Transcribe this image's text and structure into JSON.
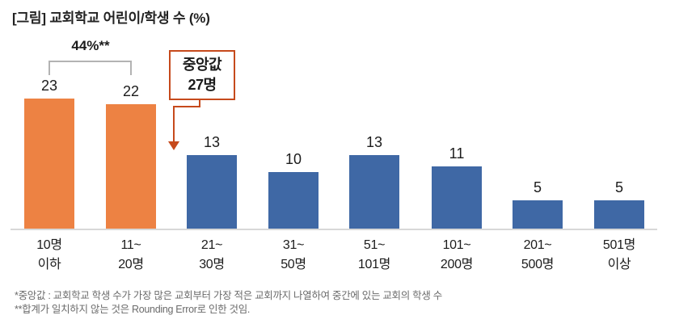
{
  "title": "[그림] 교회학교 어린이/학생 수 (%)",
  "chart_data": {
    "type": "bar",
    "categories": [
      [
        "10명",
        "이하"
      ],
      [
        "11~",
        "20명"
      ],
      [
        "21~",
        "30명"
      ],
      [
        "31~",
        "50명"
      ],
      [
        "51~",
        "101명"
      ],
      [
        "101~",
        "200명"
      ],
      [
        "201~",
        "500명"
      ],
      [
        "501명",
        "이상"
      ]
    ],
    "values": [
      23,
      22,
      13,
      10,
      13,
      11,
      5,
      5
    ],
    "unit": "%",
    "bar_colors": [
      "#ED8243",
      "#ED8243",
      "#3F68A5",
      "#3F68A5",
      "#3F68A5",
      "#3F68A5",
      "#3F68A5",
      "#3F68A5"
    ],
    "title": "[그림] 교회학교 어린이/학생 수 (%)",
    "xlabel": "",
    "ylabel": "",
    "ylim": [
      0,
      25
    ],
    "gridlines": false,
    "legend": null,
    "annotations": {
      "bracket_label": "44%**",
      "bracket_covers": [
        "10명 이하",
        "11~20명"
      ],
      "median_box": [
        "중앙값",
        "27명"
      ]
    }
  },
  "footnotes": [
    "*중앙값 : 교회학교 학생 수가 가장 많은 교회부터 가장 적은 교회까지 나열하여 중간에 있는 교회의 학생 수",
    "**합계가 일치하지 않는 것은 Rounding Error로 인한 것임."
  ],
  "colors": {
    "highlight_bar": "#ED8243",
    "default_bar": "#3F68A5",
    "annotation_red": "#C64A1C",
    "axis_line": "#D8D8D8",
    "bracket_gray": "#B3B3B3",
    "footnote_gray": "#6B6B6B"
  }
}
